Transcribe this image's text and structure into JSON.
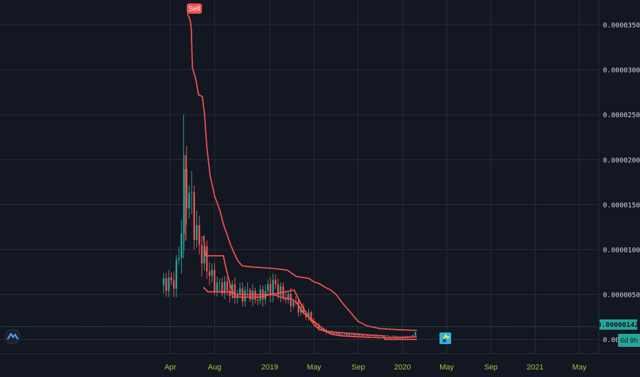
{
  "chart_data": {
    "type": "candlestick",
    "y_ticks": [
      "0.00003500",
      "0.00003000",
      "0.00002500",
      "0.00002000",
      "0.00001500",
      "0.00001000",
      "0.00000500",
      "0.00000"
    ],
    "x_ticks": [
      "Apr",
      "Aug",
      "2019",
      "May",
      "Sep",
      "2020",
      "May",
      "Sep",
      "2021",
      "May"
    ],
    "ylim": [
      -1.8e-06,
      3.88e-05
    ],
    "last_price": 1.42e-06,
    "last_price_label": "0.00000142",
    "countdown_label": "6d 9h",
    "signal_flag": {
      "label": "Sell",
      "x_month": 4.55,
      "y": 3.64e-05
    },
    "grid": true,
    "x_unit": "months since Jan 2018",
    "series": [
      {
        "role": "upper-band",
        "color": "#f05350",
        "points": [
          [
            4.55,
            3.62e-05
          ],
          [
            4.8,
            3.55e-05
          ],
          [
            4.9,
            3.45e-05
          ],
          [
            5.0,
            3.02e-05
          ],
          [
            5.3,
            2.9e-05
          ],
          [
            5.55,
            2.72e-05
          ],
          [
            5.9,
            2.7e-05
          ],
          [
            6.1,
            2.5e-05
          ],
          [
            6.3,
            2.15e-05
          ],
          [
            6.6,
            1.82e-05
          ],
          [
            7.0,
            1.6e-05
          ],
          [
            7.5,
            1.43e-05
          ],
          [
            7.8,
            1.28e-05
          ],
          [
            8.1,
            1.18e-05
          ],
          [
            8.4,
            1.07e-05
          ],
          [
            8.7,
            9.8e-06
          ],
          [
            9.0,
            9e-06
          ],
          [
            9.2,
            8.6e-06
          ],
          [
            9.5,
            8.2e-06
          ],
          [
            10,
            8.1e-06
          ],
          [
            11,
            8e-06
          ],
          [
            12.3,
            7.9e-06
          ],
          [
            13.6,
            7.7e-06
          ],
          [
            14.4,
            7e-06
          ],
          [
            15.5,
            6.8e-06
          ],
          [
            16,
            6.4e-06
          ],
          [
            16.5,
            6.2e-06
          ],
          [
            17,
            5.8e-06
          ],
          [
            17.5,
            5.5e-06
          ],
          [
            18,
            5e-06
          ],
          [
            18.6,
            4e-06
          ],
          [
            19.3,
            3e-06
          ],
          [
            20,
            2e-06
          ],
          [
            20.8,
            1.5e-06
          ],
          [
            22,
            1.2e-06
          ],
          [
            23.5,
            1.1e-06
          ],
          [
            25.3,
            1e-06
          ]
        ]
      },
      {
        "role": "mid-band",
        "color": "#f05350",
        "points": [
          [
            6.0,
            1.15e-05
          ],
          [
            6.2,
            9.3e-06
          ],
          [
            7.0,
            9.3e-06
          ],
          [
            7.8,
            9.3e-06
          ],
          [
            8.1,
            7.6e-06
          ],
          [
            8.5,
            5.7e-06
          ],
          [
            8.8,
            5e-06
          ],
          [
            10.0,
            5e-06
          ],
          [
            12.0,
            5e-06
          ],
          [
            12.3,
            5e-06
          ],
          [
            12.5,
            4.9e-06
          ],
          [
            13.3,
            4.6e-06
          ],
          [
            14.0,
            4.5e-06
          ],
          [
            14.5,
            4e-06
          ],
          [
            15.0,
            3e-06
          ],
          [
            16.0,
            2e-06
          ],
          [
            17.0,
            1e-06
          ],
          [
            17.5,
            6e-07
          ],
          [
            18.5,
            4e-07
          ],
          [
            20,
            3e-07
          ],
          [
            22,
            2e-07
          ],
          [
            24,
            2e-07
          ],
          [
            25.3,
            3e-07
          ]
        ]
      },
      {
        "role": "lower-band",
        "color": "#f05350",
        "points": [
          [
            6.0,
            5.8e-06
          ],
          [
            6.4,
            5.3e-06
          ],
          [
            7.5,
            5.3e-06
          ],
          [
            8.5,
            5.3e-06
          ],
          [
            8.7,
            4.7e-06
          ],
          [
            10.2,
            4.7e-06
          ],
          [
            11.0,
            4.7e-06
          ],
          [
            11.5,
            4.8e-06
          ],
          [
            12.0,
            5e-06
          ],
          [
            13.0,
            5.2e-06
          ],
          [
            14.2,
            5.5e-06
          ],
          [
            14.8,
            4e-06
          ],
          [
            15.5,
            2.5e-06
          ],
          [
            16.1,
            1.5e-06
          ],
          [
            16.5,
            1.1e-06
          ],
          [
            17.0,
            9e-07
          ],
          [
            18.0,
            8e-07
          ],
          [
            19.0,
            7e-07
          ],
          [
            20.0,
            6e-07
          ],
          [
            21.0,
            5e-07
          ],
          [
            22.3,
            4e-07
          ],
          [
            22.4,
            0.0
          ],
          [
            24,
            0.0
          ],
          [
            25.3,
            0.0
          ]
        ]
      }
    ]
  }
}
